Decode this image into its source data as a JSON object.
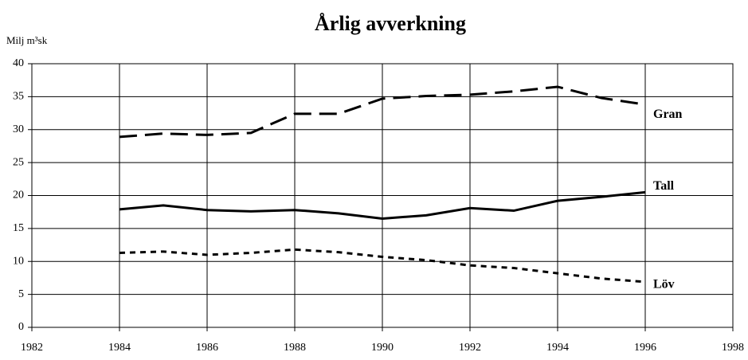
{
  "chart_data": {
    "type": "line",
    "title": "Årlig avverkning",
    "y_label": "Milj m³sk",
    "x": [
      1984,
      1985,
      1986,
      1987,
      1988,
      1989,
      1990,
      1991,
      1992,
      1993,
      1994,
      1995,
      1996
    ],
    "series": [
      {
        "name": "Gran",
        "color": "#000000",
        "style": "dashed",
        "values": [
          28.9,
          29.4,
          29.2,
          29.5,
          32.4,
          32.4,
          34.7,
          35.1,
          35.3,
          35.8,
          36.5,
          34.8,
          33.8
        ]
      },
      {
        "name": "Tall",
        "color": "#000000",
        "style": "solid",
        "values": [
          17.9,
          18.5,
          17.8,
          17.6,
          17.8,
          17.3,
          16.5,
          17.0,
          18.1,
          17.7,
          19.2,
          19.8,
          20.5
        ]
      },
      {
        "name": "Löv",
        "color": "#000000",
        "style": "dotted",
        "values": [
          11.3,
          11.5,
          11.0,
          11.3,
          11.8,
          11.4,
          10.7,
          10.2,
          9.4,
          9.0,
          8.2,
          7.4,
          6.9
        ]
      }
    ],
    "xlim": [
      1982,
      1998
    ],
    "xticks": [
      1982,
      1984,
      1986,
      1988,
      1990,
      1992,
      1994,
      1996,
      1998
    ],
    "ylim": [
      0,
      40
    ],
    "yticks": [
      0,
      5,
      10,
      15,
      20,
      25,
      30,
      35,
      40
    ],
    "grid": true
  }
}
